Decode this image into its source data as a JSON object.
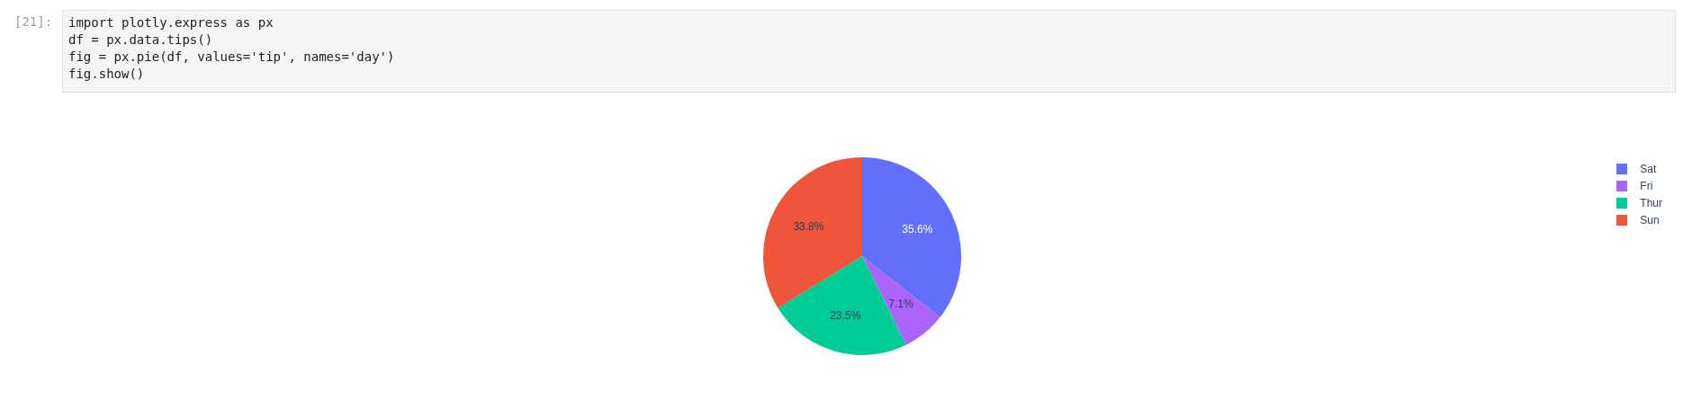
{
  "chart_data": {
    "type": "pie",
    "categories": [
      "Sat",
      "Fri",
      "Thur",
      "Sun"
    ],
    "values": [
      35.6,
      7.1,
      23.5,
      33.8
    ],
    "colors": [
      "#636efa",
      "#ab63fa",
      "#00cc96",
      "#ef553b"
    ],
    "value_labels": [
      "35.6%",
      "7.1%",
      "23.5%",
      "33.8%"
    ],
    "legend": "top right",
    "annotations": [
      "[21]:",
      "import plotly.express as px",
      "df = px.data.tips()",
      "fig = px.pie(df, values='tip', names='day')",
      "fig.show()"
    ]
  }
}
